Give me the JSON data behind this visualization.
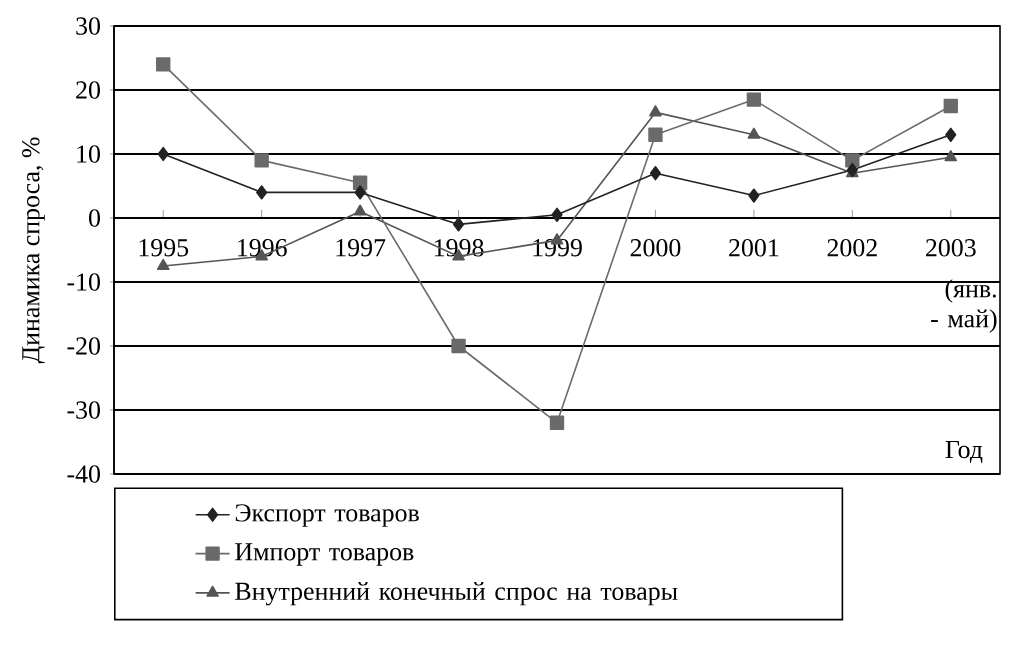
{
  "chart_data": {
    "type": "line",
    "categories": [
      "1995",
      "1996",
      "1997",
      "1998",
      "1999",
      "2000",
      "2001",
      "2002",
      "2003"
    ],
    "series": [
      {
        "name": "Экспорт товаров",
        "color": "#222222",
        "marker": "diamond",
        "values": [
          10,
          4,
          4,
          -1,
          0.5,
          7,
          3.5,
          7.5,
          13
        ]
      },
      {
        "name": "Импорт товаров",
        "color": "#6a6a6a",
        "marker": "square",
        "values": [
          24,
          9,
          5.5,
          -20,
          -32,
          13,
          18.5,
          9,
          17.5
        ]
      },
      {
        "name": "Внутренний конечный спрос на товары",
        "color": "#555555",
        "marker": "triangle",
        "values": [
          -7.5,
          -6,
          1,
          -6,
          -3.5,
          16.5,
          13,
          7,
          9.5
        ]
      }
    ],
    "xlabel": "Год",
    "ylabel": "Динамика спроса, %",
    "annotations": [
      "(янв. - май)"
    ],
    "ylim": [
      -40,
      30
    ],
    "yticks": [
      -40,
      -30,
      -20,
      -10,
      0,
      10,
      20,
      30
    ],
    "grid": "y",
    "legend": "bottom",
    "line_style": "solid"
  }
}
